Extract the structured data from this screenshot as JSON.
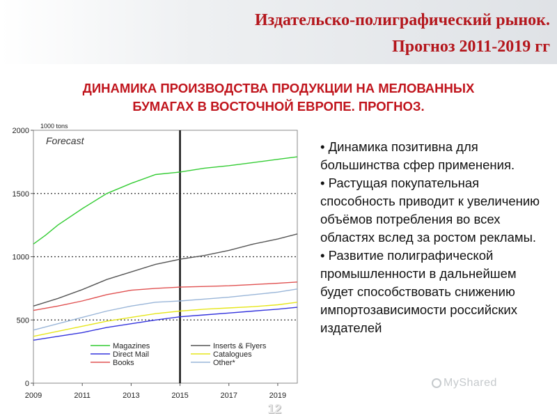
{
  "header": {
    "title_line1": "Издательско-полиграфический рынок.",
    "title_line2": "Прогноз 2011-2019 гг"
  },
  "subtitle": {
    "line1": "ДИНАМИКА ПРОИЗВОДСТВА ПРОДУКЦИИ НА МЕЛОВАННЫХ",
    "line2": "БУМАГАХ В ВОСТОЧНОЙ ЕВРОПЕ. ПРОГНОЗ."
  },
  "chart_data": {
    "type": "line",
    "unit_label": "1000 tons",
    "annotation": "Forecast",
    "ylim": [
      0,
      2000
    ],
    "yticks": [
      0,
      500,
      1000,
      1500,
      2000
    ],
    "xlim": [
      2009,
      2019.8
    ],
    "xticks": [
      2009,
      2011,
      2013,
      2015,
      2017,
      2019
    ],
    "forecast_divider_x": 2015,
    "grid": "dotted horizontal at 500, 1000, 1500",
    "legend_position": "bottom, inside plot",
    "series": [
      {
        "name": "Magazines",
        "color": "#33cc33",
        "x": [
          2009,
          2009.5,
          2010,
          2011,
          2012,
          2013,
          2014,
          2015,
          2016,
          2017,
          2018,
          2019,
          2019.8
        ],
        "values": [
          1100,
          1170,
          1250,
          1380,
          1500,
          1580,
          1650,
          1670,
          1700,
          1720,
          1745,
          1770,
          1790
        ]
      },
      {
        "name": "Inserts & Flyers",
        "color": "#555555",
        "x": [
          2009,
          2010,
          2011,
          2012,
          2013,
          2014,
          2015,
          2016,
          2017,
          2018,
          2019,
          2019.8
        ],
        "values": [
          610,
          670,
          740,
          820,
          880,
          940,
          980,
          1010,
          1050,
          1100,
          1140,
          1180
        ]
      },
      {
        "name": "Direct Mail",
        "color": "#3333dd",
        "x": [
          2009,
          2010,
          2011,
          2012,
          2013,
          2014,
          2015,
          2016,
          2017,
          2018,
          2019,
          2019.8
        ],
        "values": [
          340,
          370,
          400,
          440,
          470,
          500,
          525,
          540,
          555,
          570,
          585,
          600
        ]
      },
      {
        "name": "Catalogues",
        "color": "#e6e61a",
        "x": [
          2009,
          2010,
          2011,
          2012,
          2013,
          2014,
          2015,
          2016,
          2017,
          2018,
          2019,
          2019.8
        ],
        "values": [
          370,
          410,
          450,
          490,
          520,
          550,
          570,
          585,
          595,
          605,
          620,
          640
        ]
      },
      {
        "name": "Books",
        "color": "#e05050",
        "x": [
          2009,
          2010,
          2011,
          2012,
          2013,
          2014,
          2015,
          2016,
          2017,
          2018,
          2019,
          2019.8
        ],
        "values": [
          575,
          610,
          650,
          700,
          735,
          750,
          760,
          765,
          770,
          780,
          790,
          800
        ]
      },
      {
        "name": "Other*",
        "color": "#99b5d8",
        "x": [
          2009,
          2010,
          2011,
          2012,
          2013,
          2014,
          2015,
          2016,
          2017,
          2018,
          2019,
          2019.8
        ],
        "values": [
          420,
          470,
          520,
          570,
          610,
          640,
          650,
          665,
          680,
          700,
          720,
          745
        ]
      }
    ]
  },
  "bullets": [
    "• Динамика позитивна для большинства сфер применения.",
    "• Растущая покупательная способность приводит к увеличению объёмов потребления во всех областях вслед за ростом рекламы.",
    "• Развитие полиграфической промышленности в дальнейшем будет способствовать снижению импортозависимости российских издателей"
  ],
  "watermark": "MyShared",
  "page_number": "12"
}
